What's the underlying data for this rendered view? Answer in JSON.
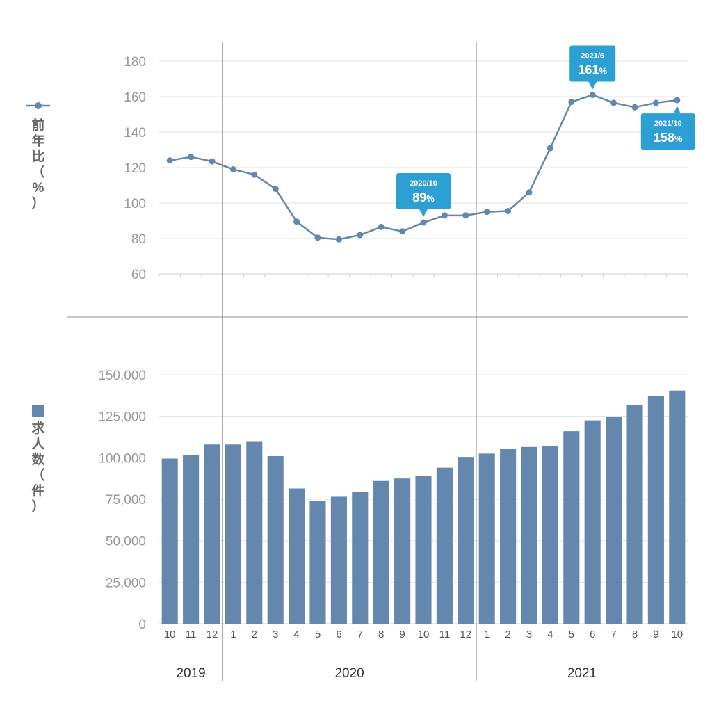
{
  "colors": {
    "series": "#6387ad",
    "callout": "#2c9fd4",
    "grid": "#e2e2e2",
    "divider": "#c8c8c8"
  },
  "chart_data": [
    {
      "type": "line",
      "ylabel": "前年比（%）",
      "ylim": [
        60,
        180
      ],
      "yticks": [
        "180",
        "160",
        "140",
        "120",
        "100",
        "80",
        "60"
      ],
      "categories": [
        "10",
        "11",
        "12",
        "1",
        "2",
        "3",
        "4",
        "5",
        "6",
        "7",
        "8",
        "9",
        "10",
        "11",
        "12",
        "1",
        "2",
        "3",
        "4",
        "5",
        "6",
        "7",
        "8",
        "9",
        "10"
      ],
      "years": [
        {
          "label": "2019",
          "months": 3
        },
        {
          "label": "2020",
          "months": 12
        },
        {
          "label": "2021",
          "months": 10
        }
      ],
      "values": [
        124,
        126,
        123.5,
        119,
        116,
        108,
        89.5,
        80.5,
        79.5,
        82,
        86.5,
        84,
        89,
        93,
        93,
        95,
        95.5,
        106,
        131,
        157,
        161,
        156.5,
        154,
        156.5,
        158
      ],
      "annotations": [
        {
          "index": 12,
          "date": "2020/10",
          "value": "89",
          "unit": "%"
        },
        {
          "index": 20,
          "date": "2021/6",
          "value": "161",
          "unit": "%"
        },
        {
          "index": 24,
          "date": "2021/10",
          "value": "158",
          "unit": "%"
        }
      ]
    },
    {
      "type": "bar",
      "ylabel": "求人数（件）",
      "ylim": [
        0,
        150000
      ],
      "yticks": [
        "150,000",
        "125,000",
        "100,000",
        "75,000",
        "50,000",
        "25,000",
        "0"
      ],
      "values": [
        99500,
        101500,
        108000,
        108000,
        110000,
        101000,
        81500,
        74000,
        76500,
        79500,
        86000,
        87500,
        89000,
        94000,
        100500,
        102500,
        105500,
        106500,
        107000,
        116000,
        122500,
        124500,
        132000,
        137000,
        140500
      ]
    }
  ]
}
